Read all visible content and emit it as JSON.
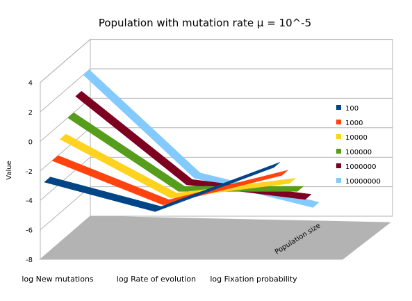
{
  "chart_data": {
    "type": "line",
    "subtype": "3d-ribbon",
    "title": "Population with mutation rate  μ = 10^-5",
    "ylabel": "Value",
    "zlabel": "Population size",
    "categories": [
      "log New mutations",
      "log Rate of evolution",
      "log Fixation probability"
    ],
    "yticks": [
      "4",
      "2",
      "0",
      "-2",
      "-4",
      "-6",
      "-8"
    ],
    "ylim": [
      -8,
      4
    ],
    "grid": true,
    "legend_position": "right",
    "series": [
      {
        "name": "100",
        "color": "#004586",
        "values": [
          -3,
          -5,
          -2
        ]
      },
      {
        "name": "1000",
        "color": "#ff420e",
        "values": [
          -2,
          -5,
          -3
        ]
      },
      {
        "name": "10000",
        "color": "#ffd320",
        "values": [
          -1,
          -5,
          -4
        ]
      },
      {
        "name": "100000",
        "color": "#579d1c",
        "values": [
          0,
          -5,
          -5
        ]
      },
      {
        "name": "1000000",
        "color": "#7e0021",
        "values": [
          1,
          -5,
          -6
        ]
      },
      {
        "name": "10000000",
        "color": "#83caff",
        "values": [
          2,
          -5,
          -7
        ]
      }
    ]
  }
}
